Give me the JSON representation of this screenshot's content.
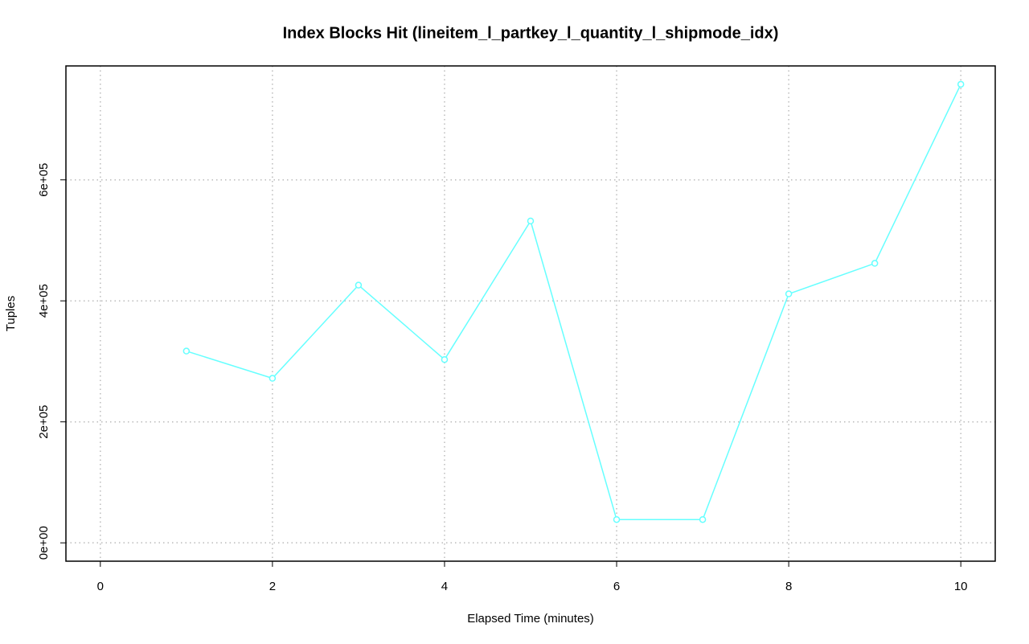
{
  "chart_data": {
    "type": "line",
    "title": "Index Blocks Hit (lineitem_l_partkey_l_quantity_l_shipmode_idx)",
    "x_label": "Elapsed Time (minutes)",
    "y_label": "Tuples",
    "x": [
      1,
      2,
      3,
      4,
      5,
      6,
      7,
      8,
      9,
      10
    ],
    "series": [
      {
        "name": "Index Blocks Hit",
        "color": "#66ffff",
        "values": [
          317000,
          272000,
          426000,
          303000,
          532000,
          38500,
          38500,
          411500,
          462000,
          758000
        ]
      }
    ],
    "xlim": [
      -0.4,
      10.4
    ],
    "xticks": [
      0,
      2,
      4,
      6,
      8,
      10
    ],
    "ylim": [
      -30320,
      788320
    ],
    "yticks": [
      {
        "value": 0,
        "label": "0e+00"
      },
      {
        "value": 200000,
        "label": "2e+05"
      },
      {
        "value": 400000,
        "label": "4e+05"
      },
      {
        "value": 600000,
        "label": "6e+05"
      }
    ],
    "grid": true
  }
}
